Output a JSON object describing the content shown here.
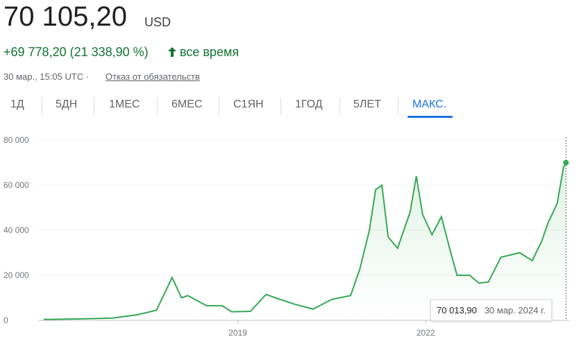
{
  "header": {
    "price": "70 105,20",
    "currency": "USD",
    "change": "+69 778,20 (21 338,90 %)",
    "period": "все время",
    "timestamp": "30 мар., 15:05 UTC ·",
    "disclaimer": "Отказ от обязательств",
    "ranges": [
      "1Д",
      "5ДН",
      "1МЕС",
      "6МЕС",
      "С1ЯН",
      "1ГОД",
      "5ЛЕТ",
      "МАКС."
    ]
  },
  "tooltip": {
    "value": "70 013,90",
    "date": "30 мар. 2024 г."
  },
  "chart_data": {
    "type": "line",
    "color": "#34a853",
    "grid": true,
    "x": [
      2015.9,
      2016.5,
      2017.0,
      2017.4,
      2017.7,
      2017.95,
      2018.1,
      2018.2,
      2018.5,
      2018.75,
      2018.9,
      2019.2,
      2019.45,
      2019.6,
      2019.9,
      2020.2,
      2020.5,
      2020.8,
      2020.95,
      2021.1,
      2021.2,
      2021.3,
      2021.4,
      2021.55,
      2021.75,
      2021.85,
      2021.95,
      2022.1,
      2022.25,
      2022.4,
      2022.5,
      2022.7,
      2022.85,
      2023.0,
      2023.2,
      2023.5,
      2023.7,
      2023.85,
      2023.95,
      2024.1,
      2024.2,
      2024.24
    ],
    "values": [
      400,
      650,
      1000,
      2500,
      4500,
      19000,
      10000,
      11000,
      6500,
      6500,
      3800,
      4000,
      11500,
      10000,
      7200,
      5000,
      9300,
      11000,
      23000,
      40000,
      58000,
      60000,
      37000,
      32000,
      48000,
      64000,
      47000,
      38000,
      46000,
      30000,
      20000,
      20000,
      16500,
      17000,
      28000,
      30000,
      26500,
      35000,
      43000,
      52000,
      68000,
      70014
    ],
    "xlim": [
      2015.9,
      2024.27
    ],
    "xticks": [
      2019,
      2022
    ],
    "ylim": [
      0,
      80000
    ],
    "yticks": [
      {
        "value": 0,
        "label": "0"
      },
      {
        "value": 20000,
        "label": "20 000"
      },
      {
        "value": 40000,
        "label": "40 000"
      },
      {
        "value": 60000,
        "label": "60 000"
      },
      {
        "value": 80000,
        "label": "80 000"
      }
    ]
  }
}
